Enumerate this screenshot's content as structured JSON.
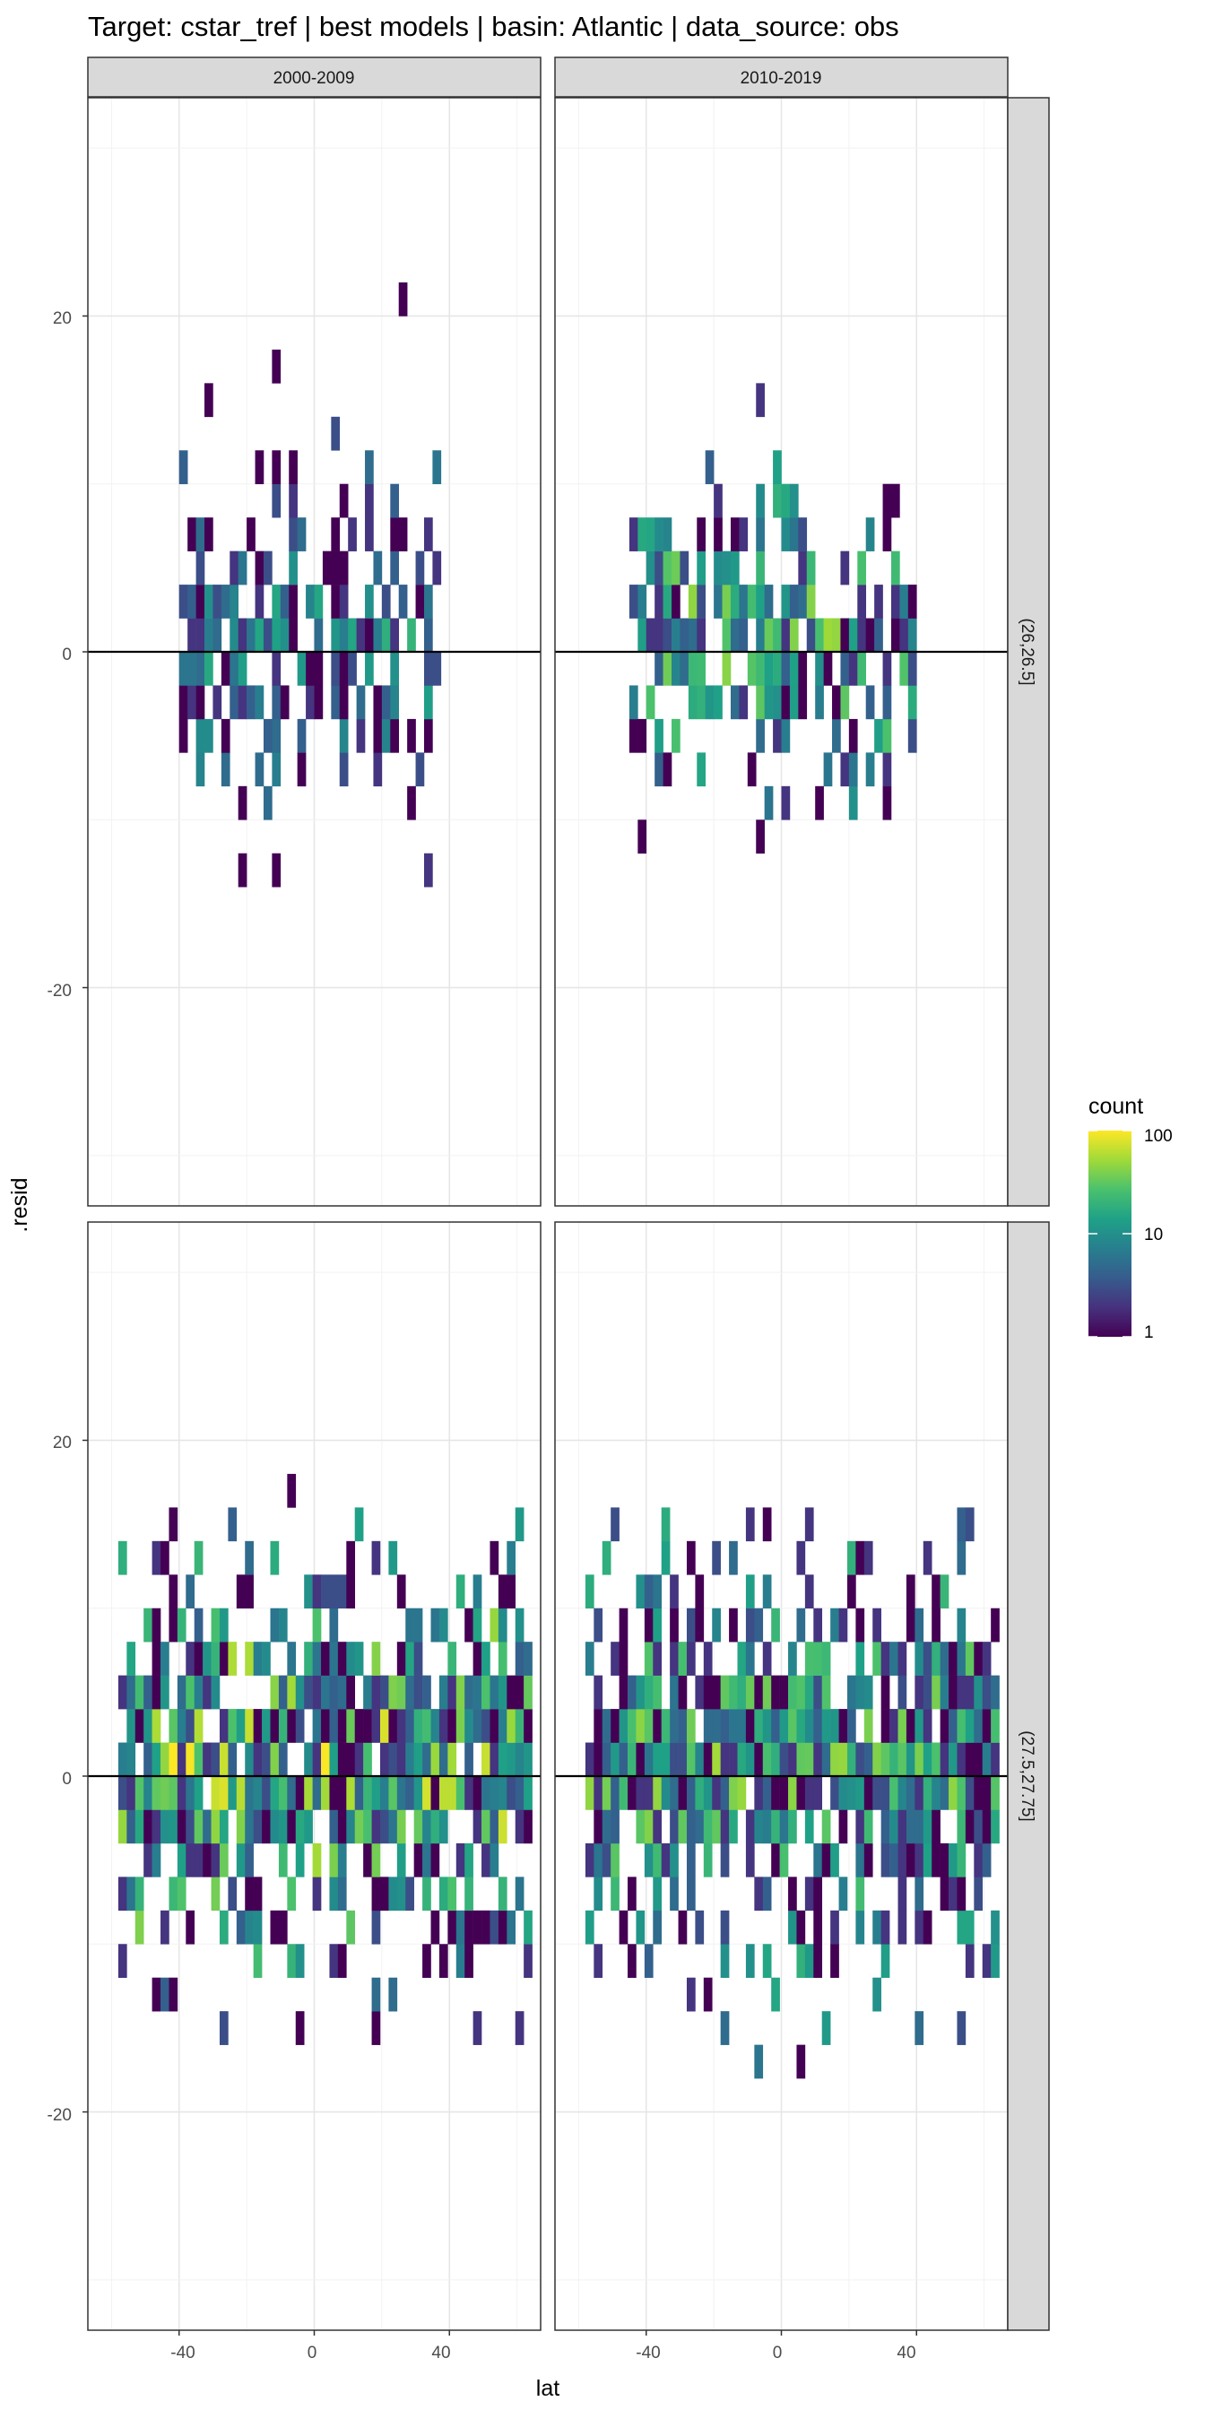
{
  "chart_data": {
    "type": "heatmap",
    "title": "Target: cstar_tref | best models | basin: Atlantic | data_source: obs",
    "xlabel": "lat",
    "ylabel": ".resid",
    "xlim": [
      -67,
      67
    ],
    "ylim": [
      -33,
      33
    ],
    "x_ticks": [
      -40,
      0,
      40
    ],
    "y_ticks": [
      -20,
      0,
      20
    ],
    "grid": true,
    "legend": {
      "title": "count",
      "scale": "log",
      "labels": [
        "1",
        "10",
        "100"
      ],
      "values": [
        1,
        10,
        100
      ],
      "placement": "right"
    },
    "colormap": [
      "#440154",
      "#46327e",
      "#365c8d",
      "#277f8e",
      "#1fa187",
      "#4ac16d",
      "#a0da39",
      "#fde725"
    ],
    "col_facets": [
      "2000-2009",
      "2010-2019"
    ],
    "row_facets": [
      "(26,26.5]",
      "(27.5,27.75]"
    ],
    "panels": [
      {
        "col": "2000-2009",
        "row": "(26,26.5]",
        "lat_range": [
          -40,
          36
        ],
        "resid_range": [
          -16,
          22
        ],
        "peak_count": 20
      },
      {
        "col": "2010-2019",
        "row": "(26,26.5]",
        "lat_range": [
          -45,
          40
        ],
        "resid_range": [
          -18,
          24
        ],
        "peak_count": 60
      },
      {
        "col": "2000-2009",
        "row": "(27.5,27.75]",
        "lat_range": [
          -58,
          63
        ],
        "resid_range": [
          -20,
          18
        ],
        "peak_count": 100
      },
      {
        "col": "2010-2019",
        "row": "(27.5,27.75]",
        "lat_range": [
          -58,
          63
        ],
        "resid_range": [
          -18,
          16
        ],
        "peak_count": 60
      }
    ],
    "reference_line": {
      "y": 0
    }
  }
}
